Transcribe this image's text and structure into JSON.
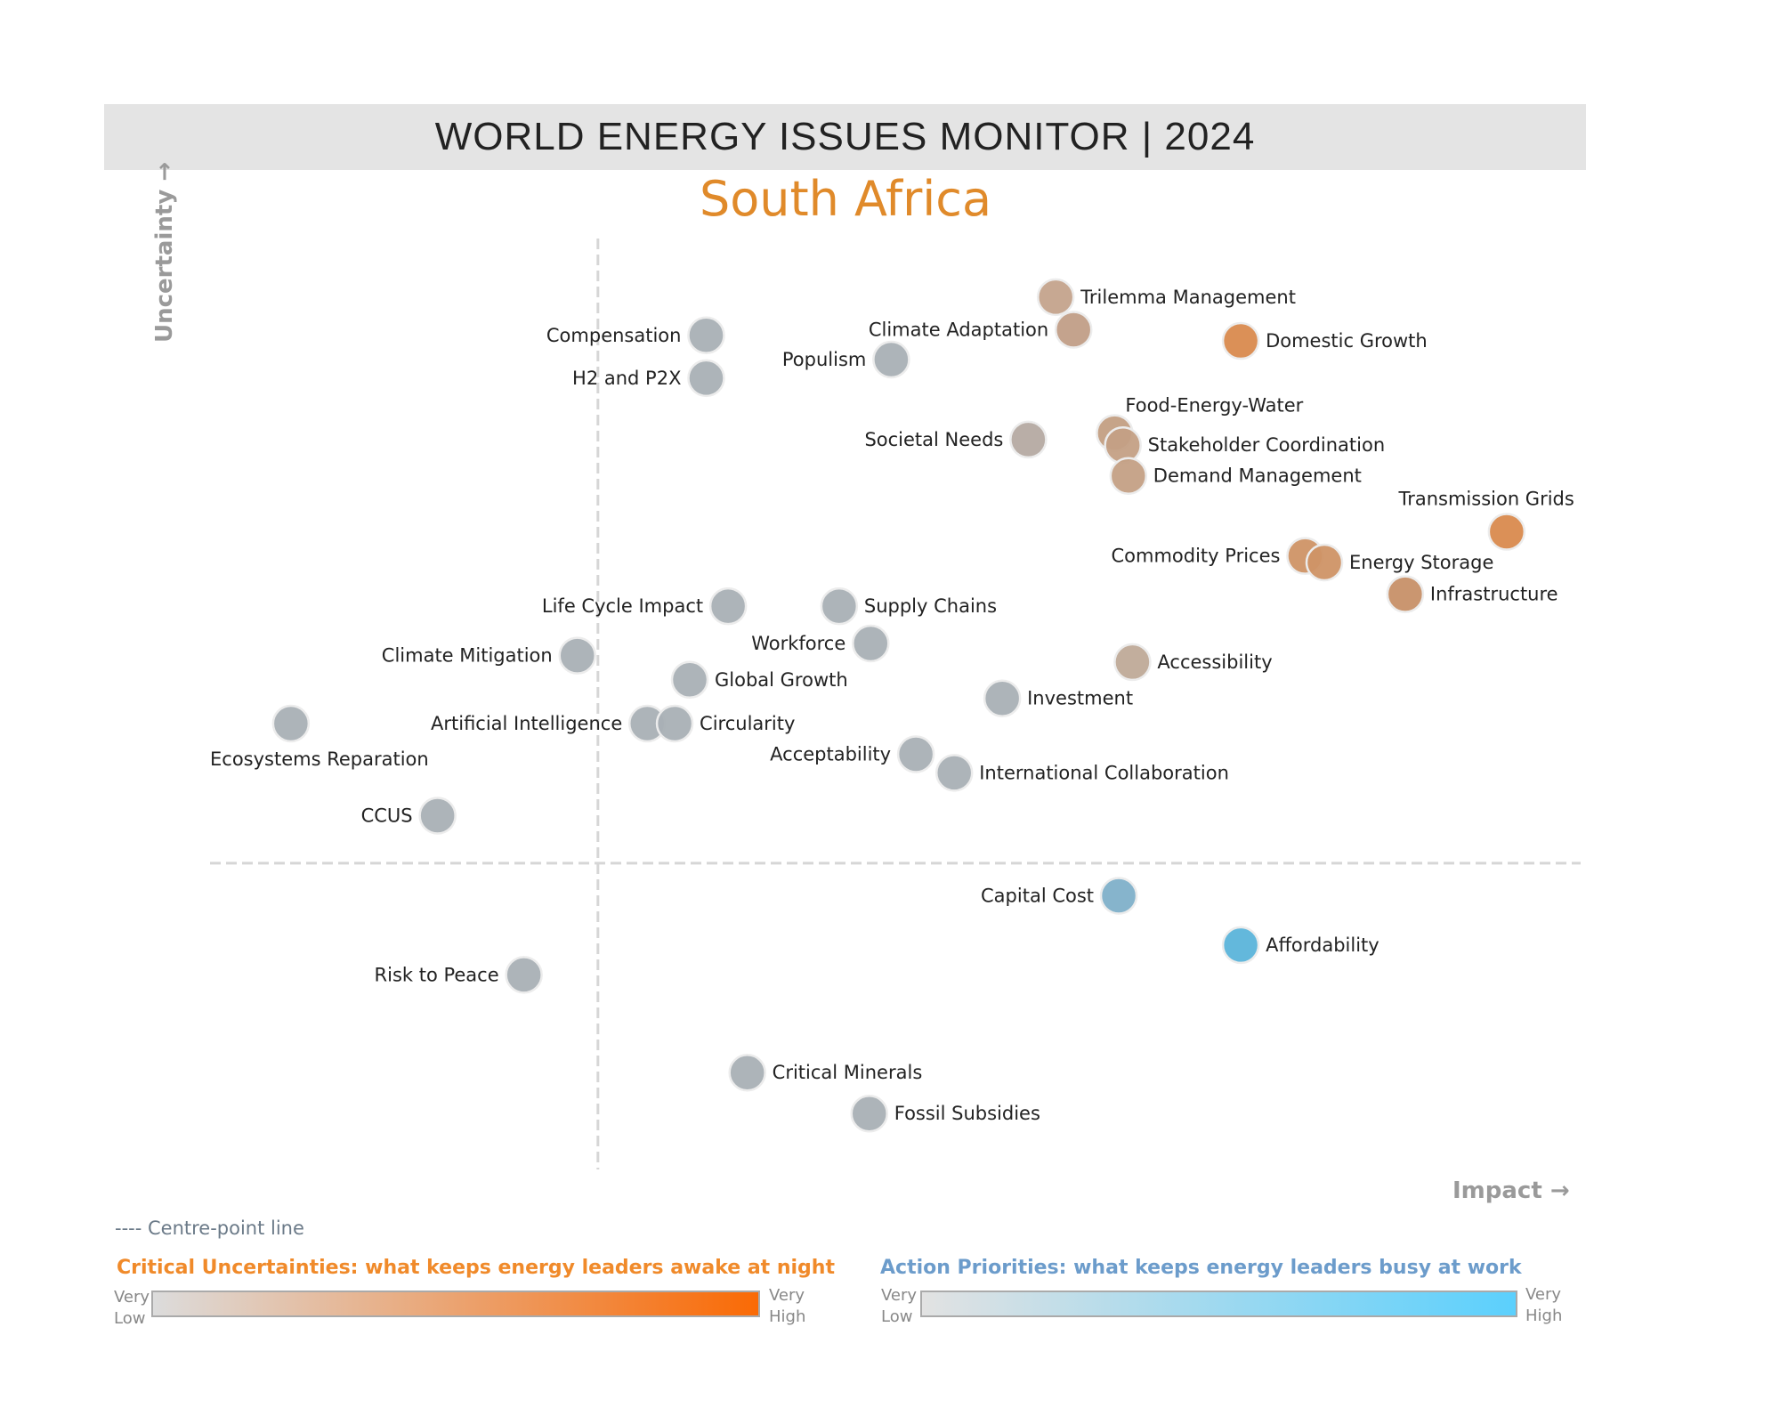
{
  "header": {
    "title": "WORLD ENERGY ISSUES MONITOR | 2024",
    "country": "South Africa"
  },
  "chart_data": {
    "type": "scatter",
    "xlabel": "Impact →",
    "ylabel": "Uncertainty →",
    "xlim": [
      0,
      100
    ],
    "ylim": [
      0,
      100
    ],
    "centre": {
      "impact": 28.3,
      "uncertainty": 32.9
    },
    "grid": false,
    "points": [
      {
        "name": "Trilemma Management",
        "impact": 61.7,
        "uncertainty": 93.7,
        "color": "#c4a38c"
      },
      {
        "name": "Climate Adaptation",
        "impact": 63.0,
        "uncertainty": 90.2,
        "color": "#c19e87"
      },
      {
        "name": "Domestic Growth",
        "impact": 75.2,
        "uncertainty": 89.0,
        "color": "#d98a4e"
      },
      {
        "name": "Compensation",
        "impact": 36.2,
        "uncertainty": 89.6,
        "color": "#a9b0b5"
      },
      {
        "name": "H2 and P2X",
        "impact": 36.2,
        "uncertainty": 85.0,
        "color": "#a9b0b5"
      },
      {
        "name": "Populism",
        "impact": 49.7,
        "uncertainty": 87.0,
        "color": "#a9b0b5"
      },
      {
        "name": "Societal Needs",
        "impact": 59.7,
        "uncertainty": 78.4,
        "color": "#b5aaa2"
      },
      {
        "name": "Food-Energy-Water",
        "impact": 66.0,
        "uncertainty": 79.1,
        "color": "#c39f83"
      },
      {
        "name": "Stakeholder Coordination",
        "impact": 66.6,
        "uncertainty": 77.8,
        "color": "#c4a085"
      },
      {
        "name": "Demand Management",
        "impact": 67.0,
        "uncertainty": 74.5,
        "color": "#c4a085"
      },
      {
        "name": "Transmission Grids",
        "impact": 94.6,
        "uncertainty": 68.5,
        "color": "#d98a4e"
      },
      {
        "name": "Commodity Prices",
        "impact": 79.9,
        "uncertainty": 65.9,
        "color": "#cf9366"
      },
      {
        "name": "Energy Storage",
        "impact": 81.3,
        "uncertainty": 65.2,
        "color": "#cf9366"
      },
      {
        "name": "Infrastructure",
        "impact": 87.2,
        "uncertainty": 61.8,
        "color": "#c79068"
      },
      {
        "name": "Life Cycle Impact",
        "impact": 37.8,
        "uncertainty": 60.5,
        "color": "#a9b0b5"
      },
      {
        "name": "Supply Chains",
        "impact": 45.9,
        "uncertainty": 60.5,
        "color": "#a9b0b5"
      },
      {
        "name": "Workforce",
        "impact": 48.2,
        "uncertainty": 56.5,
        "color": "#a9b0b5"
      },
      {
        "name": "Climate Mitigation",
        "impact": 26.8,
        "uncertainty": 55.2,
        "color": "#a9b0b5"
      },
      {
        "name": "Global Growth",
        "impact": 35.0,
        "uncertainty": 52.6,
        "color": "#a9b0b5"
      },
      {
        "name": "Accessibility",
        "impact": 67.3,
        "uncertainty": 54.5,
        "color": "#bfaa98"
      },
      {
        "name": "Investment",
        "impact": 57.8,
        "uncertainty": 50.6,
        "color": "#a9b0b5"
      },
      {
        "name": "Ecosystems Reparation",
        "impact": 5.9,
        "uncertainty": 47.9,
        "color": "#a9b0b5"
      },
      {
        "name": "Artificial Intelligence",
        "impact": 31.9,
        "uncertainty": 47.9,
        "color": "#a9b0b5"
      },
      {
        "name": "Circularity",
        "impact": 33.9,
        "uncertainty": 47.9,
        "color": "#a9b0b5"
      },
      {
        "name": "Acceptability",
        "impact": 51.5,
        "uncertainty": 44.6,
        "color": "#a9b0b5"
      },
      {
        "name": "International Collaboration",
        "impact": 54.3,
        "uncertainty": 42.6,
        "color": "#a9b0b5"
      },
      {
        "name": "CCUS",
        "impact": 16.6,
        "uncertainty": 38.0,
        "color": "#a9b0b5"
      },
      {
        "name": "Capital Cost",
        "impact": 66.3,
        "uncertainty": 29.4,
        "color": "#7fb0c9"
      },
      {
        "name": "Affordability",
        "impact": 75.2,
        "uncertainty": 24.1,
        "color": "#5bb4da"
      },
      {
        "name": "Risk to Peace",
        "impact": 22.9,
        "uncertainty": 20.9,
        "color": "#a9b0b5"
      },
      {
        "name": "Critical Minerals",
        "impact": 39.2,
        "uncertainty": 10.4,
        "color": "#a9b0b5"
      },
      {
        "name": "Fossil Subsidies",
        "impact": 48.1,
        "uncertainty": 6.0,
        "color": "#a9b0b5"
      }
    ]
  },
  "legend": {
    "centre_line": "---- Centre-point line",
    "uncertainties": {
      "title": "Critical Uncertainties: what keeps energy leaders awake at night",
      "low": [
        "Very",
        "Low"
      ],
      "high": [
        "Very",
        "High"
      ],
      "from": "#dcdcdc",
      "to": "#fa6a05",
      "color": "#f08a2a"
    },
    "priorities": {
      "title": "Action Priorities: what keeps energy leaders busy at work",
      "low": [
        "Very",
        "Low"
      ],
      "high": [
        "Very",
        "High"
      ],
      "from": "#e2e2e2",
      "to": "#5bd0fd",
      "color": "#6c9ccb"
    }
  }
}
